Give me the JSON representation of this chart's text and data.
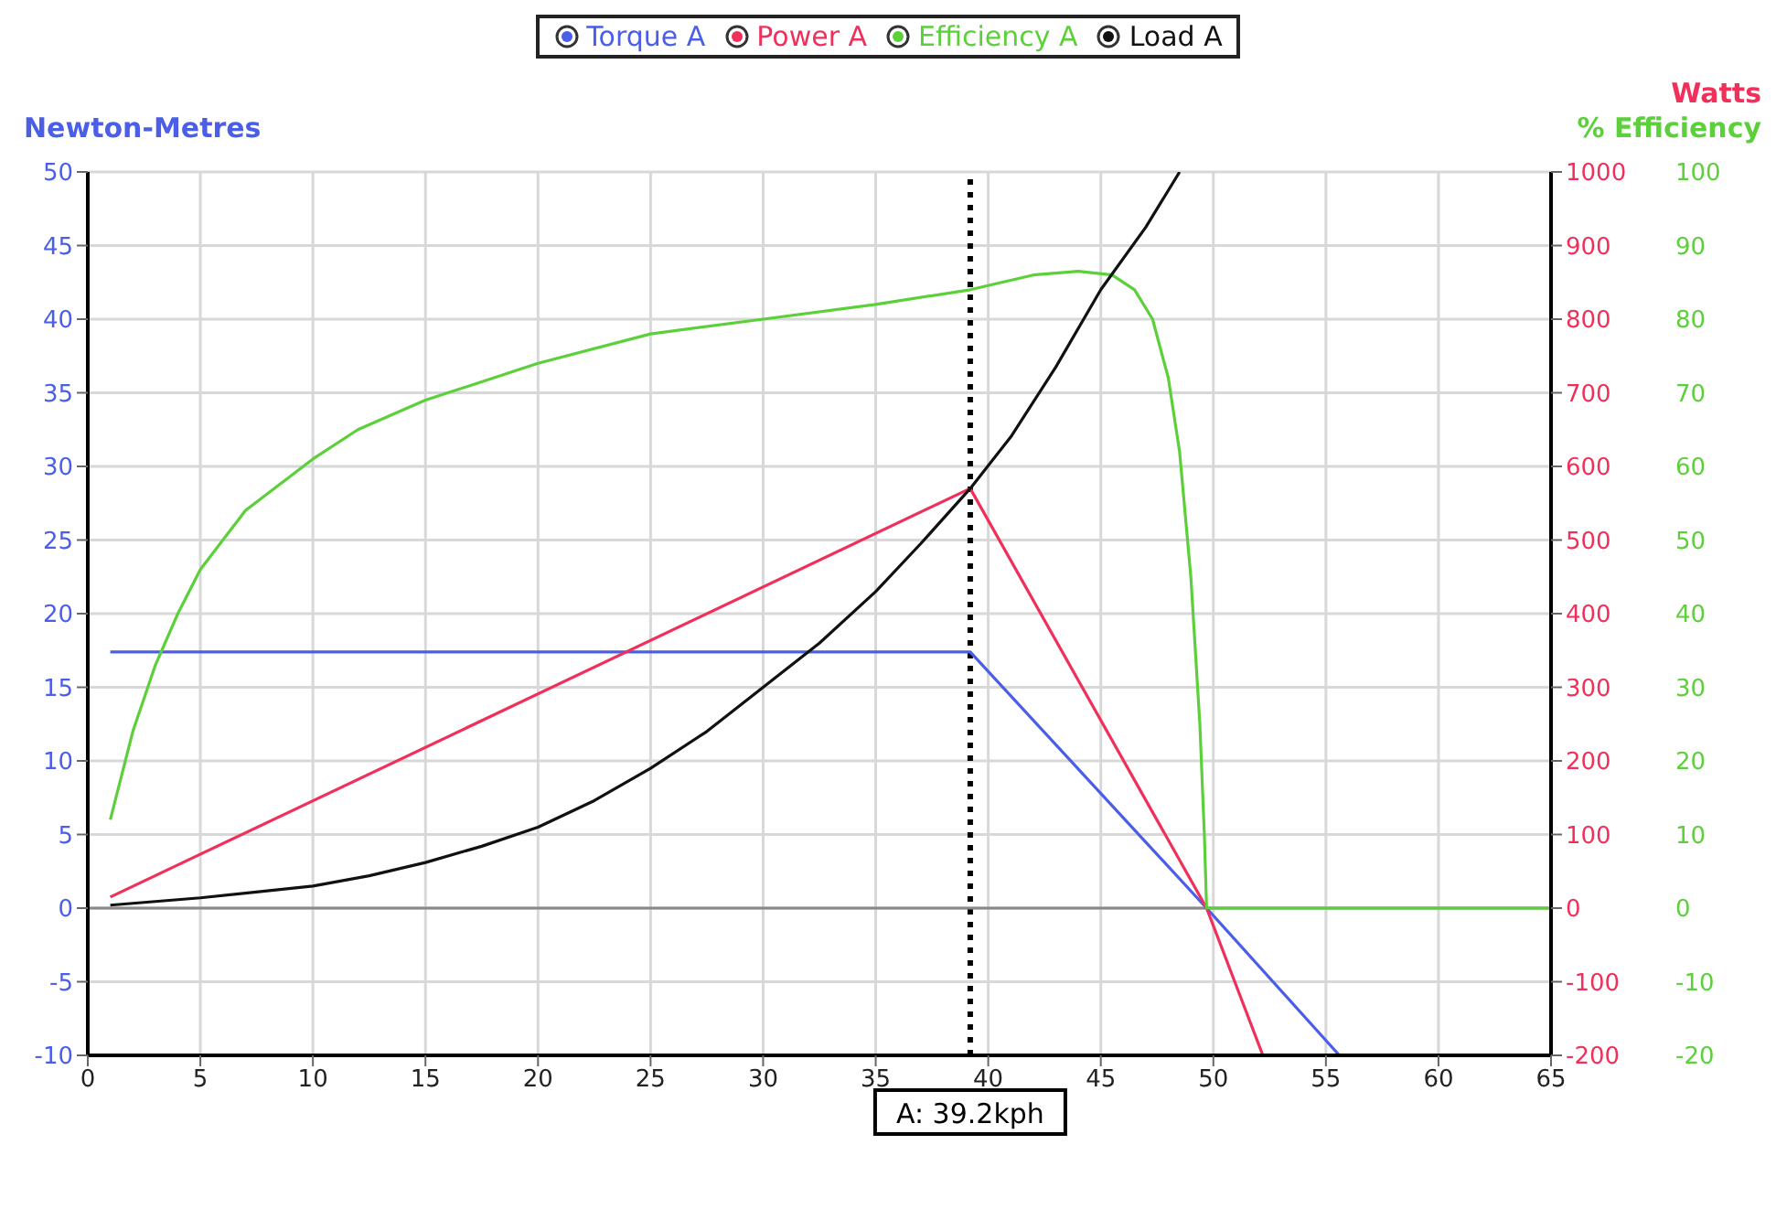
{
  "chart_data": {
    "type": "line",
    "ylabel": "Newton-Metres",
    "y2label": "Watts",
    "y3label": "% Efficiency",
    "xlim": [
      0,
      65
    ],
    "xticks": [
      0,
      5,
      10,
      15,
      20,
      25,
      30,
      35,
      40,
      45,
      50,
      55,
      60,
      65
    ],
    "ylim": [
      -10,
      50
    ],
    "yticks": [
      -10,
      -5,
      0,
      5,
      10,
      15,
      20,
      25,
      30,
      35,
      40,
      45,
      50
    ],
    "y2lim": [
      -200,
      1000
    ],
    "y2ticks": [
      -200,
      -100,
      0,
      100,
      200,
      300,
      400,
      500,
      600,
      700,
      800,
      900,
      1000
    ],
    "y3lim": [
      -20,
      100
    ],
    "y3ticks": [
      -20,
      -10,
      0,
      10,
      20,
      30,
      40,
      50,
      60,
      70,
      80,
      90,
      100
    ],
    "grid": true,
    "legend": "top",
    "series": [
      {
        "name": "Torque A",
        "color": "#4a5ee8",
        "axis": "y",
        "x": [
          1,
          39.2,
          49.7,
          55.6
        ],
        "values": [
          17.4,
          17.4,
          0,
          -10
        ]
      },
      {
        "name": "Power A",
        "color": "#f0305a",
        "axis": "y2",
        "x": [
          1,
          39.2,
          49.7,
          52.2
        ],
        "values": [
          15,
          570,
          0,
          -200
        ]
      },
      {
        "name": "Efficiency A",
        "color": "#5cd03a",
        "axis": "y3",
        "x": [
          1,
          2,
          3,
          4,
          5,
          7,
          10,
          12,
          15,
          20,
          25,
          30,
          35,
          39.2,
          42,
          44,
          45.5,
          46.5,
          47.3,
          48,
          48.5,
          49,
          49.4,
          49.6,
          49.7,
          50,
          65
        ],
        "values": [
          12,
          24,
          33,
          40,
          46,
          54,
          61,
          65,
          69,
          74,
          78,
          80,
          82,
          84,
          86,
          86.5,
          86,
          84,
          80,
          72,
          62,
          45,
          25,
          10,
          0,
          0,
          0
        ]
      },
      {
        "name": "Load A",
        "color": "#111111",
        "axis": "y2",
        "x": [
          1,
          5,
          10,
          12.5,
          15,
          17.5,
          20,
          22.5,
          25,
          27.5,
          30,
          32.5,
          35,
          37,
          39.2,
          41,
          43,
          45,
          47,
          48.5
        ],
        "values": [
          4,
          14,
          30,
          44,
          62,
          84,
          110,
          146,
          190,
          240,
          300,
          360,
          430,
          495,
          570,
          640,
          735,
          840,
          925,
          1000
        ]
      }
    ],
    "ref_lines": [
      {
        "axis": "x",
        "value": 39.2,
        "label": "A: 39.2kph",
        "color": "#000000",
        "line_style": "dotted"
      },
      {
        "axis": "y",
        "value": 0,
        "color": "#888888",
        "line_style": "solid"
      }
    ]
  }
}
